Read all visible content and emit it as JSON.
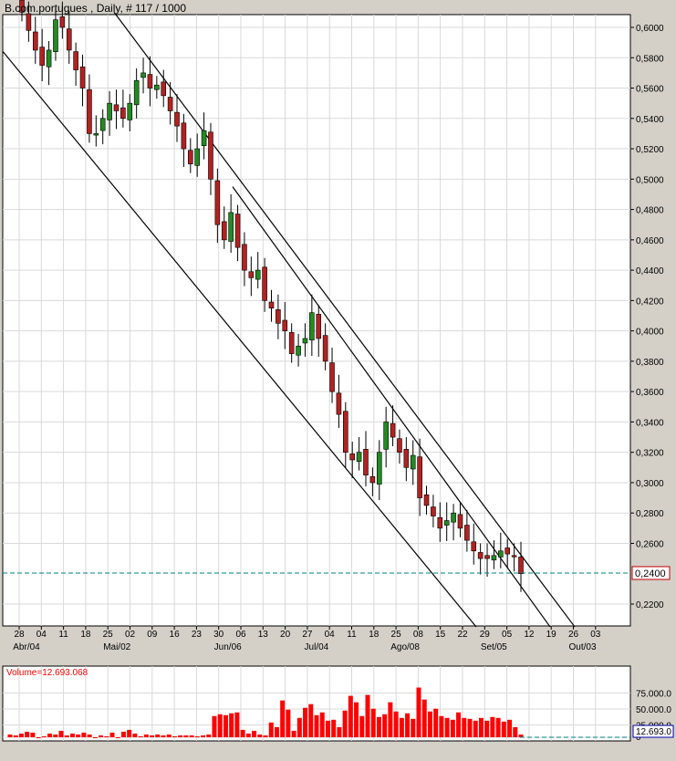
{
  "header": {
    "title": "B.com.portugues , Daily, # 117 / 1000"
  },
  "price_panel": {
    "last_price_label": "0,2400",
    "y_ticks": [
      "0,6000",
      "0,5800",
      "0,5600",
      "0,5400",
      "0,5200",
      "0,5000",
      "0,4800",
      "0,4600",
      "0,4400",
      "0,4200",
      "0,4000",
      "0,3800",
      "0,3600",
      "0,3400",
      "0,3200",
      "0,3000",
      "0,2800",
      "0,2600",
      "0,2200"
    ]
  },
  "x_axis": {
    "day_ticks": [
      "28",
      "04",
      "11",
      "18",
      "25",
      "02",
      "09",
      "16",
      "23",
      "30",
      "06",
      "13",
      "20",
      "27",
      "04",
      "11",
      "18",
      "25",
      "08",
      "15",
      "22",
      "29",
      "05",
      "12",
      "19",
      "26",
      "03"
    ],
    "month_ticks": [
      "Abr/04",
      "Mai/02",
      "Jun/06",
      "Jul/04",
      "Ago/08",
      "Set/05",
      "Out/03"
    ]
  },
  "volume_panel": {
    "label": "Volume=12.693.068",
    "y_ticks": [
      "75.000.0",
      "50.000.0",
      "25.000.0",
      "0"
    ],
    "last_value_label": "12.693.0"
  },
  "colors": {
    "bear": "#b22222",
    "bull": "#228b22",
    "volume": "#ff0000",
    "last_line": "#008080",
    "grid": "#d9d9d9",
    "channel": "#000000",
    "volume_label": "#ff0000"
  },
  "chart_data": [
    {
      "type": "candlestick",
      "title": "B.com.portugues , Daily, # 117 / 1000",
      "ylim": [
        0.21,
        0.61
      ],
      "last_value": 0.24,
      "x_range_label": "28 Mar to 03 Out",
      "approx_close_series": [
        0.61,
        0.598,
        0.585,
        0.575,
        0.585,
        0.605,
        0.6,
        0.585,
        0.572,
        0.56,
        0.53,
        0.53,
        0.54,
        0.55,
        0.545,
        0.54,
        0.55,
        0.565,
        0.57,
        0.56,
        0.562,
        0.555,
        0.545,
        0.535,
        0.52,
        0.51,
        0.52,
        0.532,
        0.5,
        0.47,
        0.46,
        0.478,
        0.455,
        0.44,
        0.435,
        0.44,
        0.42,
        0.415,
        0.405,
        0.4,
        0.385,
        0.39,
        0.395,
        0.412,
        0.395,
        0.38,
        0.36,
        0.345,
        0.32,
        0.315,
        0.32,
        0.305,
        0.3,
        0.32,
        0.34,
        0.33,
        0.32,
        0.31,
        0.318,
        0.29,
        0.285,
        0.278,
        0.27,
        0.275,
        0.28,
        0.27,
        0.262,
        0.255,
        0.25,
        0.25,
        0.252,
        0.255,
        0.253,
        0.252,
        0.24
      ],
      "channel_lines": [
        {
          "from": [
            "28 Mar",
            0.592
          ],
          "to": [
            "22 Ago",
            0.205
          ]
        },
        {
          "from": [
            "09 Abr",
            0.61
          ],
          "to": [
            "19 Set",
            0.205
          ]
        },
        {
          "from": [
            "06 Jun",
            0.495
          ],
          "to": [
            "12 Set",
            0.205
          ]
        }
      ]
    },
    {
      "type": "bar",
      "title": "Volume",
      "value_last": 12693068,
      "ylim": [
        0,
        100000000
      ],
      "values": [
        14,
        12,
        16,
        20,
        18,
        8,
        10,
        16,
        14,
        22,
        12,
        16,
        14,
        18,
        14,
        8,
        12,
        10,
        18,
        8,
        20,
        24,
        16,
        10,
        14,
        12,
        14,
        12,
        14,
        10,
        12,
        12,
        12,
        10,
        12,
        14,
        54,
        58,
        56,
        60,
        62,
        24,
        16,
        22,
        14,
        12,
        40,
        30,
        88,
        68,
        22,
        50,
        72,
        80,
        56,
        62,
        44,
        46,
        30,
        66,
        98,
        84,
        54,
        100,
        70,
        52,
        58,
        84,
        64,
        50,
        60,
        48,
        116,
        90,
        64,
        70,
        54,
        50,
        46,
        62,
        50,
        48,
        44,
        50,
        44,
        52,
        50,
        42,
        46,
        30,
        14
      ]
    }
  ]
}
